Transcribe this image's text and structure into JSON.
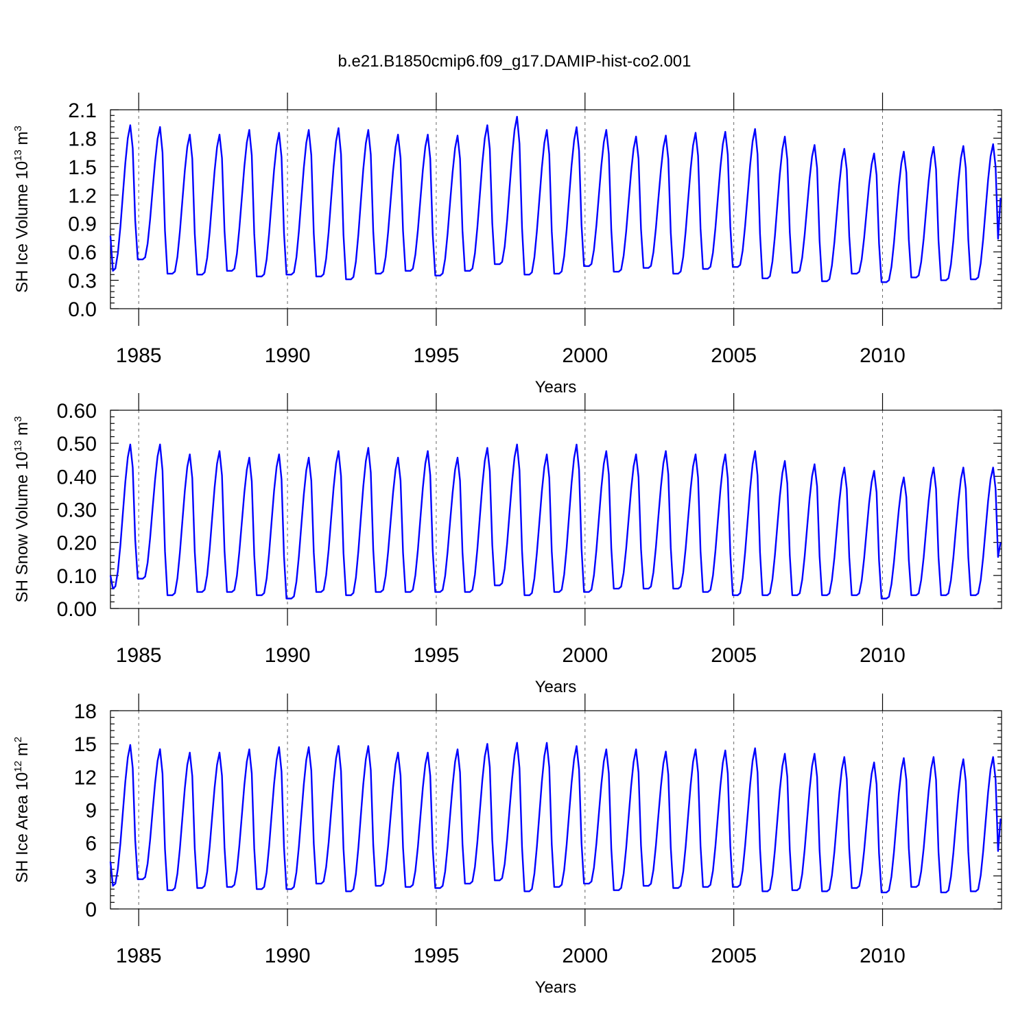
{
  "page_title": "b.e21.B1850cmip6.f09_g17.DAMIP-hist-co2.001",
  "chart_data": [
    {
      "type": "line",
      "id": "ice-volume",
      "ylabel_main": "SH Ice Volume 10",
      "ylabel_exp": "13",
      "ylabel_unit": "m",
      "ylabel_unit_exp": "3",
      "xlabel": "Years",
      "xlim": [
        1984.05,
        2014.0
      ],
      "ylim": [
        0.0,
        2.1
      ],
      "yticks": [
        "0.0",
        "0.3",
        "0.6",
        "0.9",
        "1.2",
        "1.5",
        "1.8",
        "2.1"
      ],
      "xticks": [
        "1985",
        "1990",
        "1995",
        "2000",
        "2005",
        "2010"
      ],
      "series": [
        {
          "name": "SH Ice Volume",
          "color": "#0000ff",
          "start_year": 1984.05,
          "step": 0.08333,
          "annual_max": [
            1.95,
            1.93,
            1.85,
            1.85,
            1.9,
            1.87,
            1.9,
            1.92,
            1.9,
            1.85,
            1.85,
            1.84,
            1.95,
            2.04,
            1.9,
            1.93,
            1.9,
            1.83,
            1.84,
            1.87,
            1.88,
            1.91,
            1.83,
            1.74,
            1.7,
            1.65,
            1.67,
            1.72,
            1.73,
            1.75
          ],
          "annual_min": [
            0.4,
            0.52,
            0.37,
            0.36,
            0.4,
            0.34,
            0.36,
            0.34,
            0.31,
            0.37,
            0.4,
            0.35,
            0.4,
            0.47,
            0.36,
            0.37,
            0.45,
            0.39,
            0.43,
            0.37,
            0.42,
            0.44,
            0.32,
            0.38,
            0.29,
            0.37,
            0.28,
            0.33,
            0.3,
            0.31
          ],
          "first_value": 0.77,
          "last_value": 1.17
        }
      ]
    },
    {
      "type": "line",
      "id": "snow-volume",
      "ylabel_main": "SH Snow Volume 10",
      "ylabel_exp": "13",
      "ylabel_unit": "m",
      "ylabel_unit_exp": "3",
      "xlabel": "Years",
      "xlim": [
        1984.05,
        2014.0
      ],
      "ylim": [
        0.0,
        0.6
      ],
      "yticks": [
        "0.00",
        "0.10",
        "0.20",
        "0.30",
        "0.40",
        "0.50",
        "0.60"
      ],
      "xticks": [
        "1985",
        "1990",
        "1995",
        "2000",
        "2005",
        "2010"
      ],
      "series": [
        {
          "name": "SH Snow Volume",
          "color": "#0000ff",
          "start_year": 1984.05,
          "step": 0.08333,
          "annual_max": [
            0.5,
            0.5,
            0.47,
            0.48,
            0.46,
            0.47,
            0.46,
            0.48,
            0.49,
            0.46,
            0.48,
            0.46,
            0.49,
            0.5,
            0.47,
            0.5,
            0.48,
            0.47,
            0.48,
            0.47,
            0.47,
            0.48,
            0.45,
            0.44,
            0.43,
            0.42,
            0.4,
            0.43,
            0.43,
            0.43
          ],
          "annual_min": [
            0.06,
            0.09,
            0.04,
            0.05,
            0.05,
            0.04,
            0.03,
            0.05,
            0.04,
            0.05,
            0.05,
            0.05,
            0.05,
            0.07,
            0.04,
            0.05,
            0.05,
            0.06,
            0.06,
            0.06,
            0.05,
            0.04,
            0.04,
            0.04,
            0.04,
            0.04,
            0.03,
            0.04,
            0.04,
            0.04
          ],
          "first_value": 0.1,
          "last_value": 0.2
        }
      ]
    },
    {
      "type": "line",
      "id": "ice-area",
      "ylabel_main": "SH Ice Area 10",
      "ylabel_exp": "12",
      "ylabel_unit": "m",
      "ylabel_unit_exp": "2",
      "xlabel": "Years",
      "xlim": [
        1984.05,
        2014.0
      ],
      "ylim": [
        0,
        18
      ],
      "yticks": [
        "0",
        "3",
        "6",
        "9",
        "12",
        "15",
        "18"
      ],
      "xticks": [
        "1985",
        "1990",
        "1995",
        "2000",
        "2005",
        "2010"
      ],
      "series": [
        {
          "name": "SH Ice Area",
          "color": "#0000ff",
          "start_year": 1984.05,
          "step": 0.08333,
          "annual_max": [
            15.0,
            14.6,
            14.3,
            14.3,
            14.6,
            14.8,
            14.8,
            14.9,
            14.9,
            14.3,
            14.3,
            14.6,
            15.1,
            15.2,
            15.2,
            14.9,
            14.6,
            14.6,
            14.4,
            14.6,
            14.5,
            14.7,
            14.2,
            14.2,
            13.9,
            13.4,
            13.8,
            13.9,
            13.7,
            13.9
          ],
          "annual_min": [
            2.1,
            2.7,
            1.7,
            1.9,
            2.0,
            1.8,
            1.8,
            2.3,
            1.6,
            2.1,
            2.0,
            1.9,
            2.3,
            2.6,
            1.6,
            2.0,
            2.3,
            1.7,
            2.1,
            1.9,
            2.0,
            2.0,
            1.6,
            1.7,
            1.6,
            1.9,
            1.5,
            2.0,
            1.5,
            1.6
          ],
          "first_value": 4.3,
          "last_value": 8.2
        }
      ]
    }
  ]
}
